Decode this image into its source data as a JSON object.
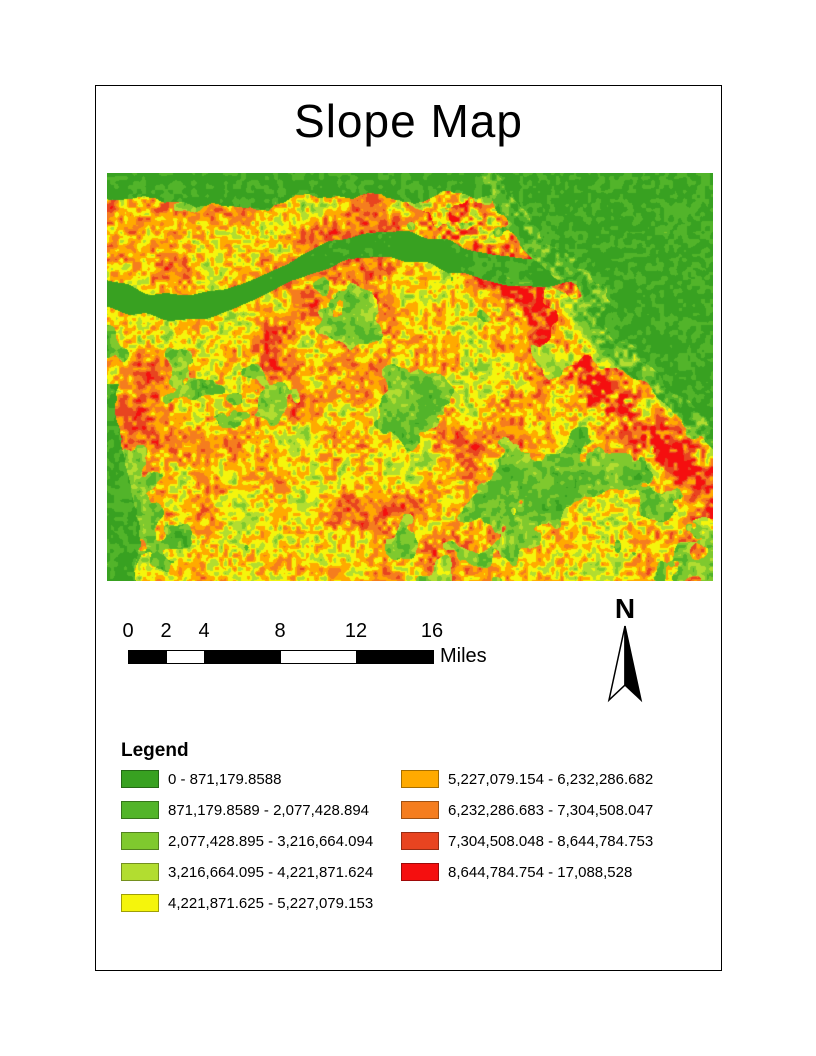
{
  "page": {
    "title": "Slope Map"
  },
  "scalebar": {
    "labels": [
      "0",
      "2",
      "4",
      "8",
      "12",
      "16"
    ],
    "unit": "Miles",
    "segments": [
      {
        "fill": "#000000"
      },
      {
        "fill": "#ffffff"
      },
      {
        "fill": "#000000"
      },
      {
        "fill": "#ffffff"
      },
      {
        "fill": "#000000"
      }
    ]
  },
  "north_arrow": {
    "label": "N"
  },
  "legend": {
    "title": "Legend",
    "items": [
      {
        "label": "0 - 871,179.8588",
        "color": "#38a121"
      },
      {
        "label": "871,179.8589 - 2,077,428.894",
        "color": "#52b42a"
      },
      {
        "label": "2,077,428.895 - 3,216,664.094",
        "color": "#7fc92e"
      },
      {
        "label": "3,216,664.095 - 4,221,871.624",
        "color": "#b2dd30"
      },
      {
        "label": "4,221,871.625 - 5,227,079.153",
        "color": "#f5f50c"
      },
      {
        "label": "5,227,079.154 - 6,232,286.682",
        "color": "#ffaa00"
      },
      {
        "label": "6,232,286.683 - 7,304,508.047",
        "color": "#f57d1e"
      },
      {
        "label": "7,304,508.048 - 8,644,784.753",
        "color": "#e84420"
      },
      {
        "label": "8,644,784.754 - 17,088,528",
        "color": "#f50f0f"
      }
    ]
  }
}
